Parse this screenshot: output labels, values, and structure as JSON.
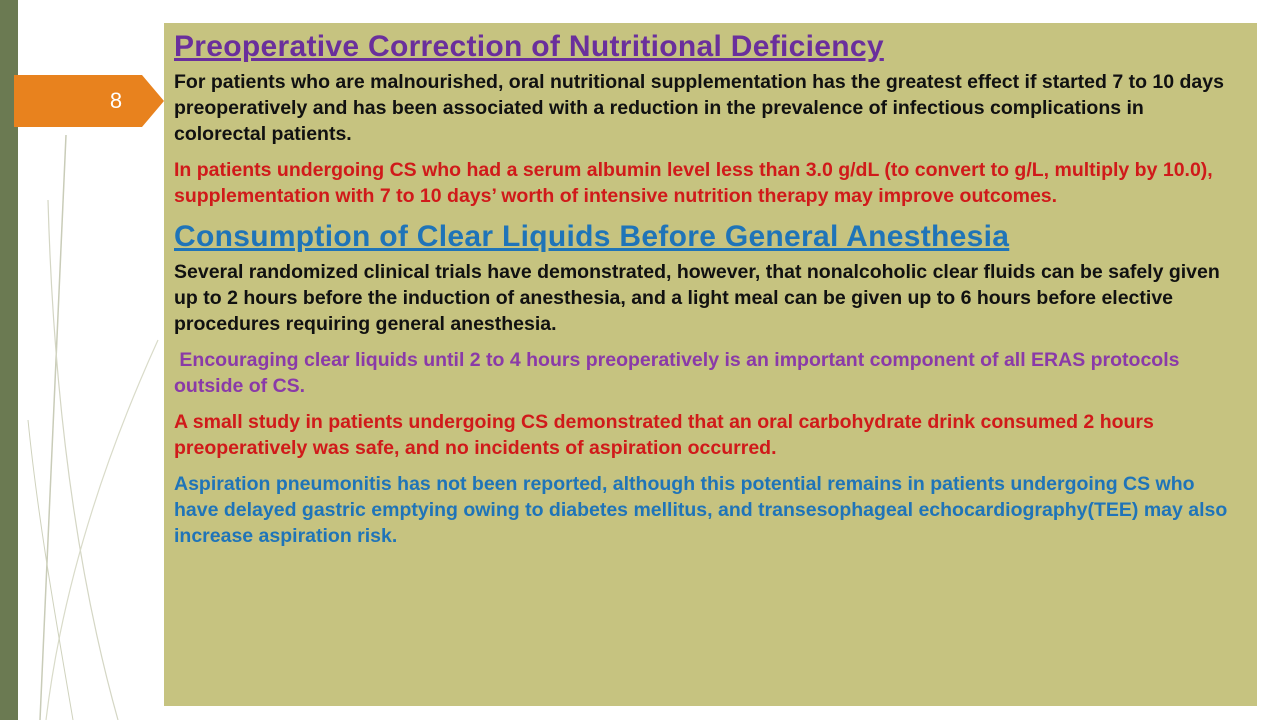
{
  "slide": {
    "number": "8"
  },
  "sections": [
    {
      "heading": "Preoperative Correction of Nutritional Deficiency",
      "paragraphs": [
        "For patients who are malnourished, oral nutritional supplementation has the greatest effect if started 7 to 10 days preoperatively and has been associated with a reduction in the prevalence of infectious complications in colorectal patients.",
        "In patients undergoing CS who had a serum albumin level less than 3.0 g/dL (to convert to g/L, multiply by 10.0), supplementation with 7 to 10 days’ worth of intensive nutrition therapy may improve outcomes."
      ]
    },
    {
      "heading": "Consumption of Clear Liquids Before General Anesthesia",
      "paragraphs": [
        "Several randomized clinical trials have demonstrated, however, that nonalcoholic clear fluids can be safely given up to 2 hours before the induction of anesthesia, and a light meal can be given up to 6 hours before elective procedures requiring general anesthesia.",
        " Encouraging clear liquids until 2 to 4 hours preoperatively is an important component of all ERAS protocols outside of CS.",
        "A small study in patients undergoing CS demonstrated that an oral carbohydrate drink consumed 2 hours preoperatively was safe, and no incidents of aspiration occurred.",
        "Aspiration pneumonitis has not been reported, although this potential remains in patients undergoing CS who have delayed gastric emptying owing to diabetes mellitus, and transesophageal echocardiography(TEE) may also increase aspiration risk."
      ]
    }
  ],
  "colors": {
    "panel": "#c6c380",
    "accent_tab": "#e8821e",
    "left_bar": "#6b7a52",
    "heading_1": "#6a2f9c",
    "heading_2": "#1f74b8",
    "text_black": "#111111",
    "text_red": "#d01a1a",
    "text_purple": "#8a3aa8",
    "text_blue": "#1f74b8"
  }
}
